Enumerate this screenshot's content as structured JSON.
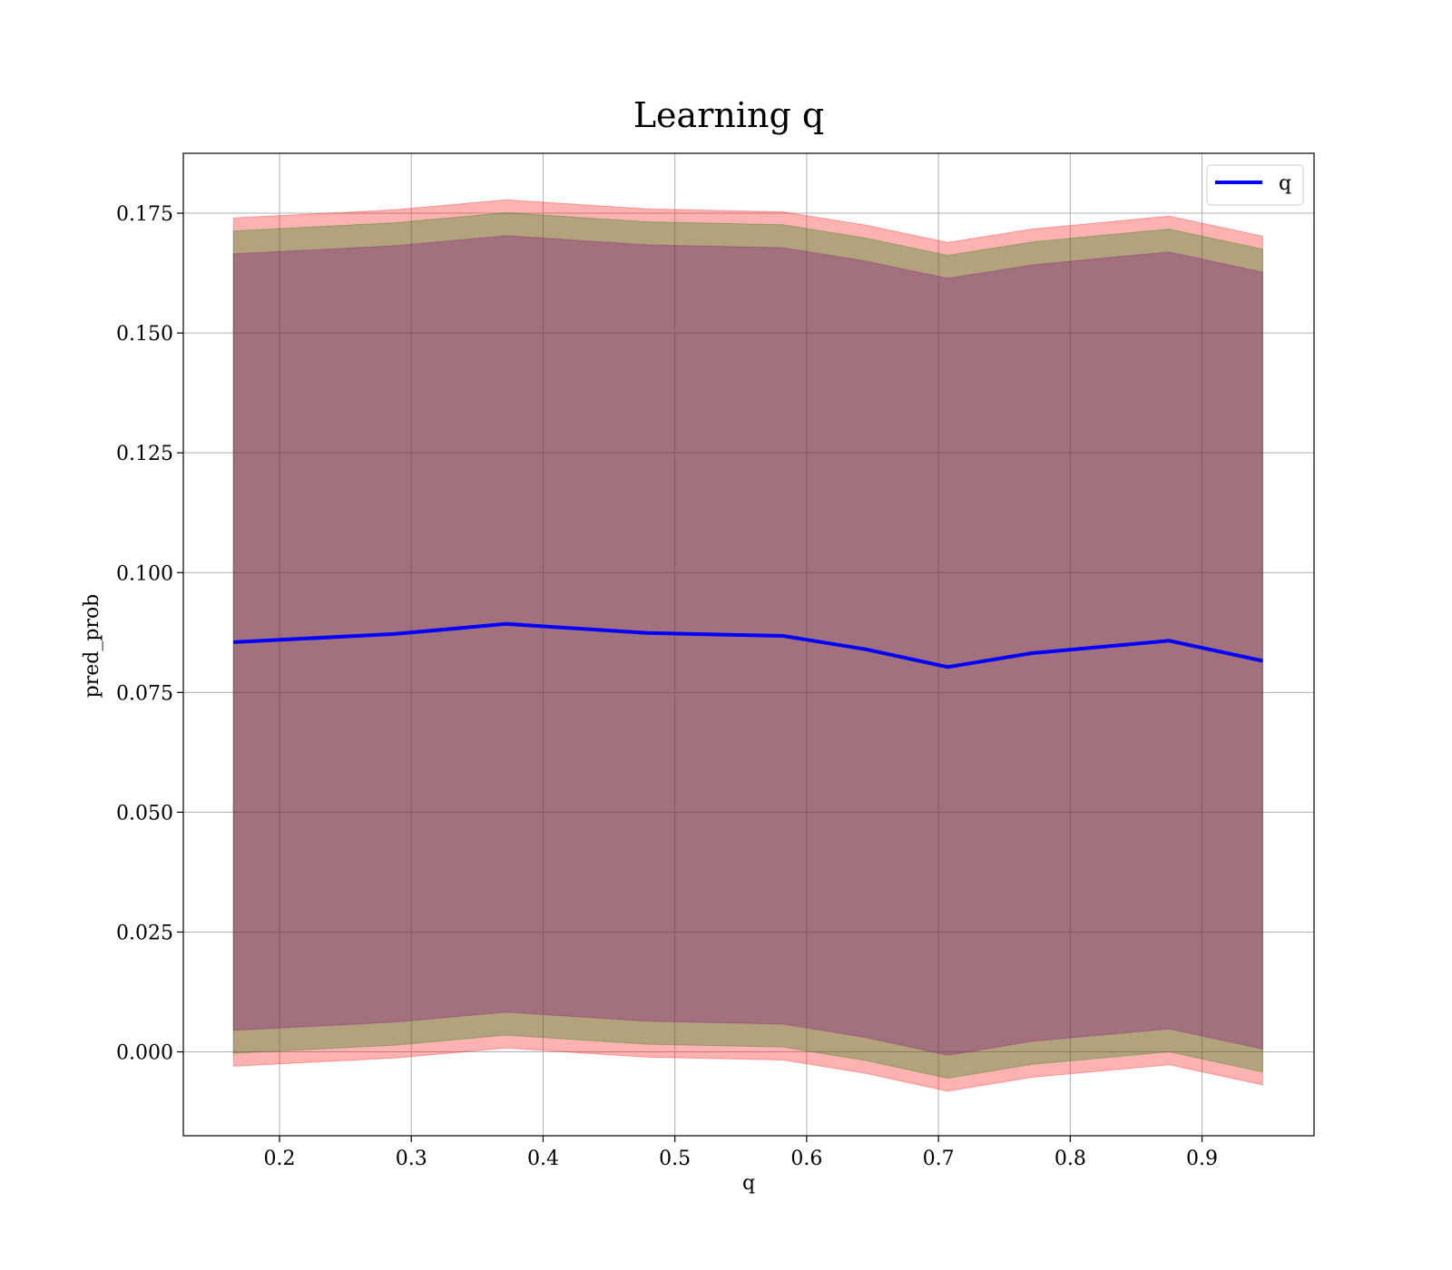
{
  "chart_data": {
    "type": "line",
    "title": "Learning q",
    "xlabel": "q",
    "ylabel": "pred_prob",
    "xlim": [
      0.127,
      0.985
    ],
    "ylim": [
      -0.0175,
      0.1875
    ],
    "grid": true,
    "legend_position": "top-right",
    "x_ticks": [
      "0.2",
      "0.3",
      "0.4",
      "0.5",
      "0.6",
      "0.7",
      "0.8",
      "0.9"
    ],
    "y_ticks": [
      "0.000",
      "0.025",
      "0.050",
      "0.075",
      "0.100",
      "0.125",
      "0.150",
      "0.175"
    ],
    "x": [
      0.165,
      0.287,
      0.372,
      0.479,
      0.582,
      0.645,
      0.707,
      0.771,
      0.875,
      0.946
    ],
    "series": [
      {
        "name": "q",
        "color": "#0000ff",
        "values": [
          0.0855,
          0.0872,
          0.0893,
          0.0874,
          0.0868,
          0.084,
          0.0803,
          0.0832,
          0.0858,
          0.0816
        ]
      }
    ],
    "bands": [
      {
        "color": "#ff0000",
        "opacity": 0.3,
        "upper": [
          0.174,
          0.1757,
          0.1778,
          0.1759,
          0.1753,
          0.1725,
          0.1689,
          0.1717,
          0.1744,
          0.1702
        ],
        "lower": [
          -0.003,
          -0.0013,
          0.0008,
          -0.0011,
          -0.0017,
          -0.0045,
          -0.0082,
          -0.0053,
          -0.0027,
          -0.0069
        ]
      },
      {
        "color": "#008000",
        "opacity": 0.3,
        "upper": [
          0.1713,
          0.173,
          0.1751,
          0.1732,
          0.1726,
          0.1698,
          0.1662,
          0.169,
          0.1717,
          0.1675
        ],
        "lower": [
          -0.0003,
          0.0014,
          0.0035,
          0.0016,
          0.001,
          -0.0018,
          -0.0055,
          -0.0026,
          0.0,
          -0.0042
        ]
      },
      {
        "color": "#800080",
        "opacity": 0.3,
        "upper": [
          0.1665,
          0.1682,
          0.1703,
          0.1684,
          0.1678,
          0.165,
          0.1614,
          0.1642,
          0.1669,
          0.1627
        ],
        "lower": [
          0.0045,
          0.0062,
          0.0083,
          0.0064,
          0.0058,
          0.003,
          -0.0007,
          0.0022,
          0.0048,
          0.0006
        ]
      }
    ]
  }
}
